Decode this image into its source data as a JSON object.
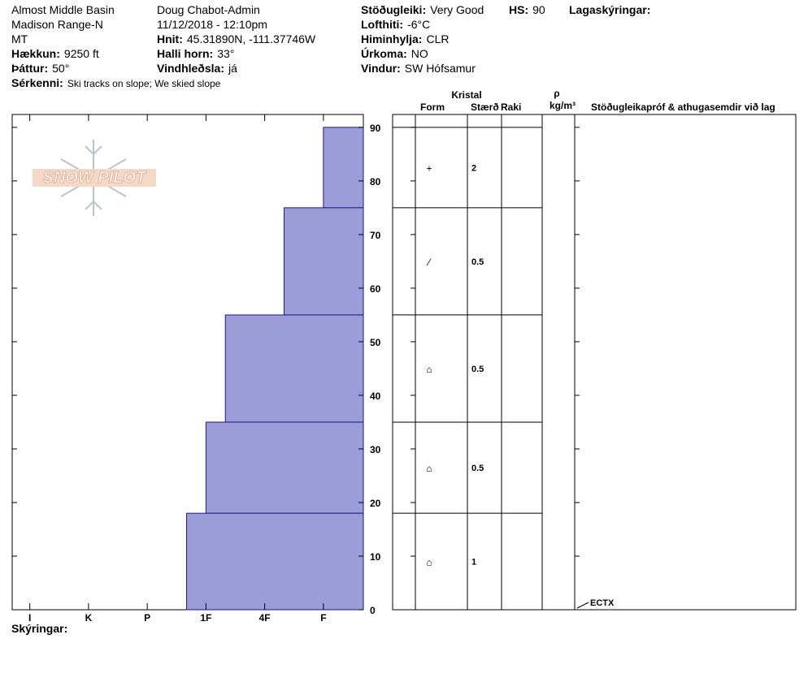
{
  "header": {
    "columns": [
      [
        "Almost Middle Basin",
        "Madison Range-N",
        "MT",
        {
          "label": "Hækkun:",
          "value": "9250 ft"
        },
        {
          "label": "Þáttur:",
          "value": "50°"
        }
      ],
      [
        "Doug Chabot-Admin",
        "11/12/2018 - 12:10pm",
        {
          "label": "Hnit:",
          "value": "45.31890N, -111.37746W"
        },
        {
          "label": "Halli horn:",
          "value": "33°"
        },
        {
          "label": "Vindhleðsla:",
          "value": "já"
        }
      ],
      [
        {
          "label": "Stöðugleiki:",
          "value": "Very Good"
        },
        {
          "label": "Lofthiti:",
          "value": "-6°C"
        },
        {
          "label": "Himinhylja:",
          "value": "CLR"
        },
        {
          "label": "Úrkoma:",
          "value": "NO"
        },
        {
          "label": "Vindur:",
          "value": "SW Hófsamur"
        }
      ]
    ],
    "snow_depth": {
      "label": "HS:",
      "value": 90
    },
    "layer_notes_label": "Lagaskýringar:",
    "features": {
      "label": "Sérkenni:",
      "value": "Ski tracks on slope; We skied slope"
    },
    "footer_label": "Skýringar:",
    "logo": "SNOW PILOT"
  },
  "chart_data": {
    "type": "profile",
    "ylim": [
      0,
      92.4
    ],
    "yticks": [
      0,
      10,
      20,
      30,
      40,
      50,
      60,
      70,
      80,
      90
    ],
    "xlim": [
      0.7,
      6.68
    ],
    "xticks": [
      {
        "value": 1,
        "label": "I"
      },
      {
        "value": 2,
        "label": "K"
      },
      {
        "value": 3,
        "label": "P"
      },
      {
        "value": 4,
        "label": "1F"
      },
      {
        "value": 5,
        "label": "4F"
      },
      {
        "value": 6,
        "label": "F"
      }
    ],
    "color": "#9c9cd8",
    "layers": [
      {
        "top": 90,
        "bottom": 75,
        "hardness": 6,
        "form": "+",
        "size": 2
      },
      {
        "top": 75,
        "bottom": 55,
        "hardness": 5.33,
        "form": "⁄",
        "size": 0.5
      },
      {
        "top": 55,
        "bottom": 35,
        "hardness": 4.33,
        "form": "⌂",
        "size": 0.5
      },
      {
        "top": 35,
        "bottom": 18,
        "hardness": 4,
        "form": "⌂",
        "size": 0.5
      },
      {
        "top": 18,
        "bottom": 0,
        "hardness": 3.67,
        "form": "⌂",
        "size": 1
      }
    ],
    "table_headers": {
      "crystal": "Kristal",
      "form": "Form",
      "size": "Stærð",
      "moisture": "Raki",
      "density_symbol": "ρ",
      "density_unit": "kg/m³",
      "tests": "Stöðugleikapróf & athugasemdir við lag"
    },
    "tests": [
      {
        "label": "ECTX",
        "depth": 0
      }
    ]
  }
}
